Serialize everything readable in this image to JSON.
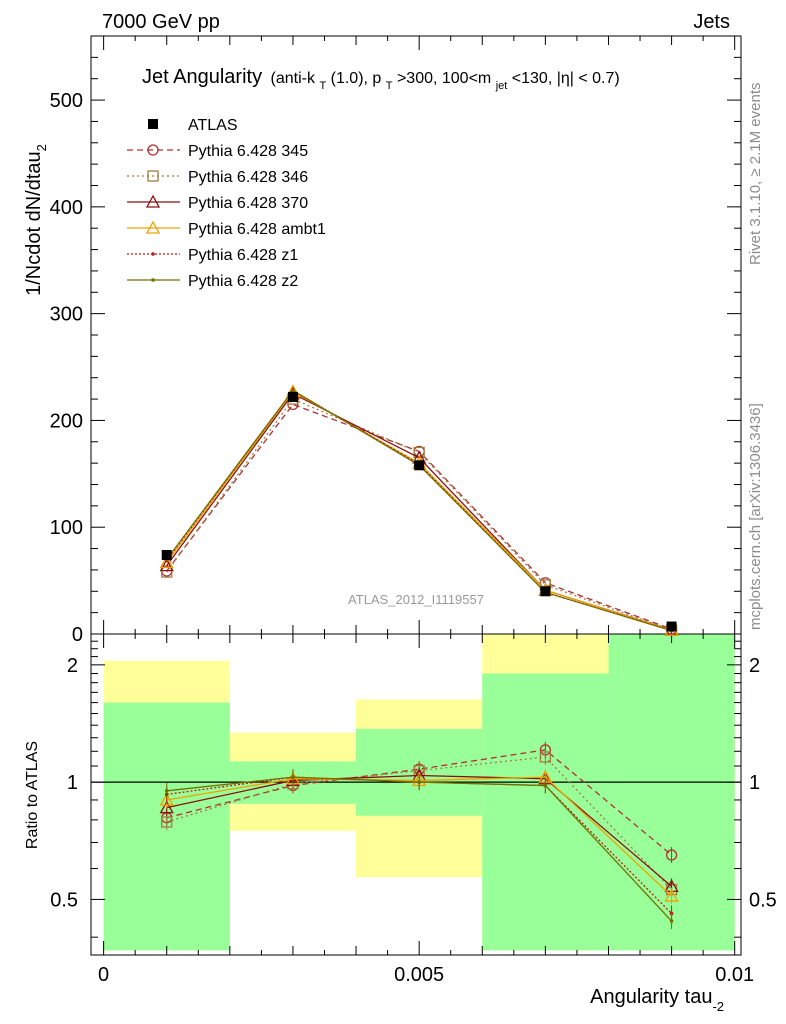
{
  "header": {
    "left": "7000 GeV pp",
    "right": "Jets"
  },
  "title": {
    "main": "Jet Angularity",
    "detail_pre": "(anti-k",
    "detail_sub1": "T",
    "detail_mid1": "(1.0), p",
    "detail_sub2": "T",
    "detail_mid2": ">300, 100<m",
    "detail_sub3": "jet",
    "detail_post": "<130, |η| < 0.7)"
  },
  "side_labels": {
    "rivet": "Rivet 3.1.10, ≥ 2.1M events",
    "mcplots": "mcplots.cern.ch [arXiv:1306.3436]"
  },
  "watermark": "ATLAS_2012_I1119557",
  "ylabel_main": "1/Ncdot dN/dtau",
  "ylabel_main_sub": "2",
  "ylabel_ratio": "Ratio to ATLAS",
  "xlabel": "Angularity tau",
  "xlabel_sub": "-2",
  "main_ticks": [
    {
      "value": 0,
      "label": "0"
    },
    {
      "value": 100,
      "label": "100"
    },
    {
      "value": 200,
      "label": "200"
    },
    {
      "value": 300,
      "label": "300"
    },
    {
      "value": 400,
      "label": "400"
    },
    {
      "value": 500,
      "label": "500"
    }
  ],
  "ratio_ticks": [
    {
      "value": 0.5,
      "label": "0.5"
    },
    {
      "value": 1,
      "label": "1"
    },
    {
      "value": 2,
      "label": "2"
    }
  ],
  "x_ticks": [
    {
      "value": 0,
      "label": "0"
    },
    {
      "value": 0.005,
      "label": "0.005"
    },
    {
      "value": 0.01,
      "label": "0.01"
    }
  ],
  "colors": {
    "band_inner": "#99ff99",
    "band_outer": "#ffff99"
  },
  "chart_data": [
    {
      "type": "line",
      "panel": "main",
      "xlim": [
        -0.0002,
        0.0101
      ],
      "ylim": [
        0,
        560
      ],
      "x": [
        0.001,
        0.003,
        0.005,
        0.007,
        0.009
      ],
      "data_series": {
        "name": "ATLAS",
        "values": [
          74,
          222,
          158,
          40,
          7
        ]
      },
      "series": [
        {
          "name": "Pythia 6.428 345",
          "color": "#b03030",
          "dash": "6,4",
          "marker": "circle",
          "values": [
            59,
            215,
            171,
            48,
            4.6
          ]
        },
        {
          "name": "Pythia 6.428 346",
          "color": "#a07c40",
          "dash": "2,3",
          "marker": "square",
          "values": [
            58,
            220,
            170,
            46,
            3.7
          ]
        },
        {
          "name": "Pythia 6.428 370",
          "color": "#8b1010",
          "dash": "",
          "marker": "triangle",
          "values": [
            64,
            225,
            165,
            41,
            3.8
          ]
        },
        {
          "name": "Pythia 6.428 ambt1",
          "color": "#f0a000",
          "dash": "",
          "marker": "triangle",
          "values": [
            67,
            227,
            160,
            41,
            3.6
          ]
        },
        {
          "name": "Pythia 6.428 z1",
          "color": "#c01818",
          "dash": "2,2",
          "marker": "dot",
          "values": [
            69,
            228,
            159,
            39,
            3.2
          ]
        },
        {
          "name": "Pythia 6.428 z2",
          "color": "#707000",
          "dash": "",
          "marker": "dot",
          "values": [
            70,
            228,
            158,
            39,
            3.1
          ]
        }
      ]
    },
    {
      "type": "line",
      "panel": "ratio",
      "xlim": [
        -0.0002,
        0.0101
      ],
      "ylim": [
        0.36,
        2.4
      ],
      "log_y": true,
      "bands": [
        {
          "x": [
            0.0,
            0.002
          ],
          "inner": [
            0.37,
            1.6
          ],
          "outer": [
            0.37,
            2.05
          ]
        },
        {
          "x": [
            0.002,
            0.004
          ],
          "inner": [
            0.88,
            1.13
          ],
          "outer": [
            0.75,
            1.34
          ]
        },
        {
          "x": [
            0.004,
            0.006
          ],
          "inner": [
            0.82,
            1.37
          ],
          "outer": [
            0.57,
            1.63
          ]
        },
        {
          "x": [
            0.006,
            0.008
          ],
          "inner": [
            0.37,
            1.9
          ],
          "outer": [
            0.37,
            2.4
          ]
        },
        {
          "x": [
            0.008,
            0.01
          ],
          "inner": [
            0.37,
            2.4
          ],
          "outer": [
            0.37,
            2.4
          ]
        }
      ],
      "x": [
        0.001,
        0.003,
        0.005,
        0.007,
        0.009
      ],
      "series": [
        {
          "name": "Pythia 6.428 345",
          "color": "#b03030",
          "dash": "6,4",
          "marker": "circle",
          "values": [
            0.81,
            0.98,
            1.08,
            1.21,
            0.65
          ]
        },
        {
          "name": "Pythia 6.428 346",
          "color": "#a07c40",
          "dash": "2,3",
          "marker": "square",
          "values": [
            0.79,
            0.99,
            1.07,
            1.16,
            0.53
          ]
        },
        {
          "name": "Pythia 6.428 370",
          "color": "#8b1010",
          "dash": "",
          "marker": "triangle",
          "values": [
            0.86,
            1.01,
            1.04,
            1.02,
            0.54
          ]
        },
        {
          "name": "Pythia 6.428 ambt1",
          "color": "#f0a000",
          "dash": "",
          "marker": "triangle",
          "values": [
            0.9,
            1.02,
            1.01,
            1.03,
            0.51
          ]
        },
        {
          "name": "Pythia 6.428 z1",
          "color": "#c01818",
          "dash": "2,2",
          "marker": "dot",
          "values": [
            0.93,
            1.03,
            1.0,
            0.98,
            0.46
          ]
        },
        {
          "name": "Pythia 6.428 z2",
          "color": "#707000",
          "dash": "",
          "marker": "dot",
          "values": [
            0.95,
            1.03,
            1.0,
            0.98,
            0.44
          ]
        }
      ]
    }
  ]
}
